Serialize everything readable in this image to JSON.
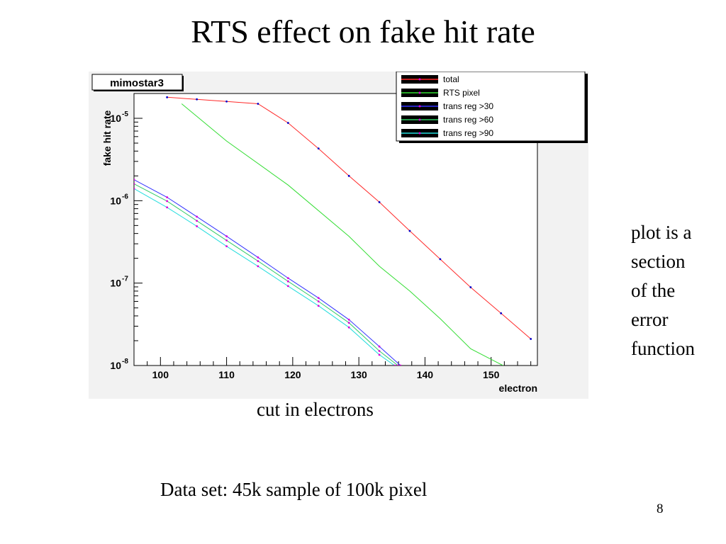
{
  "slide": {
    "title": "RTS effect on fake hit rate",
    "side_note": [
      "plot is a",
      "section",
      "of the",
      "error",
      "function"
    ],
    "caption": "cut in electrons",
    "dataset": "Data set: 45k sample of 100k pixel",
    "page_number": "8"
  },
  "colors": {
    "total": "#ff2a2a",
    "rts_pixel": "#33dd33",
    "trans30": "#3333ff",
    "trans60": "#33cc66",
    "trans90": "#22dddd",
    "marker": "#dd00dd",
    "frame_bg": "#f2f2f2",
    "legend_bg": "#ffffff",
    "legend_swatch_bg": "#000000"
  },
  "chart_data": {
    "type": "line",
    "title": "mimostar3",
    "xlabel": "electron",
    "ylabel": "fake hit rate",
    "xlim": [
      96,
      157
    ],
    "ylim": [
      1e-08,
      2e-05
    ],
    "yscale": "log",
    "xticks": [
      100,
      110,
      120,
      130,
      140,
      150
    ],
    "yticks": [
      {
        "value": 1e-08,
        "base": "10",
        "exp": "-8"
      },
      {
        "value": 1e-07,
        "base": "10",
        "exp": "-7"
      },
      {
        "value": 1e-06,
        "base": "10",
        "exp": "-6"
      },
      {
        "value": 1e-05,
        "base": "10",
        "exp": "-5"
      }
    ],
    "legend_position": "top-right",
    "grid": false,
    "series": [
      {
        "name": "total",
        "color_key": "total",
        "markers": true,
        "x": [
          101,
          105.5,
          110,
          114.75,
          119.3,
          123.9,
          128.5,
          133.1,
          137.7,
          142.3,
          146.9,
          151.5,
          156
        ],
        "y": [
          1.8e-05,
          1.7e-05,
          1.6e-05,
          1.5e-05,
          8.8e-06,
          4.3e-06,
          2e-06,
          9.6e-07,
          4.3e-07,
          1.95e-07,
          8.9e-08,
          4.3e-08,
          2.1e-08
        ]
      },
      {
        "name": "RTS pixel",
        "color_key": "rts_pixel",
        "markers": false,
        "x": [
          103.2,
          110,
          119.3,
          128.5,
          133.1,
          137.7,
          142.3,
          146.9,
          151.8
        ],
        "y": [
          1.5e-05,
          5.3e-06,
          1.55e-06,
          3.7e-07,
          1.6e-07,
          8e-08,
          3.7e-08,
          1.6e-08,
          1e-08
        ]
      },
      {
        "name": "trans reg >30",
        "color_key": "trans30",
        "markers": true,
        "x": [
          96,
          101,
          105.5,
          110,
          114.75,
          119.3,
          123.9,
          128.5,
          133.1,
          136.3
        ],
        "y": [
          1.8e-06,
          1.1e-06,
          6.4e-07,
          3.7e-07,
          2.05e-07,
          1.15e-07,
          6.6e-08,
          3.6e-08,
          1.7e-08,
          1e-08
        ]
      },
      {
        "name": "trans reg >60",
        "color_key": "trans60",
        "markers": true,
        "x": [
          96,
          101,
          105.5,
          110,
          114.75,
          119.3,
          123.9,
          128.5,
          133.1,
          135.9
        ],
        "y": [
          1.6e-06,
          9.9e-07,
          5.7e-07,
          3.3e-07,
          1.85e-07,
          1.05e-07,
          6e-08,
          3.3e-08,
          1.5e-08,
          1e-08
        ]
      },
      {
        "name": "trans reg >90",
        "color_key": "trans90",
        "markers": true,
        "x": [
          96,
          101,
          105.5,
          110,
          114.75,
          119.3,
          123.9,
          128.5,
          133.1,
          135.4
        ],
        "y": [
          1.4e-06,
          8.3e-07,
          4.9e-07,
          2.8e-07,
          1.6e-07,
          9.2e-08,
          5.3e-08,
          2.9e-08,
          1.35e-08,
          1e-08
        ]
      }
    ]
  }
}
